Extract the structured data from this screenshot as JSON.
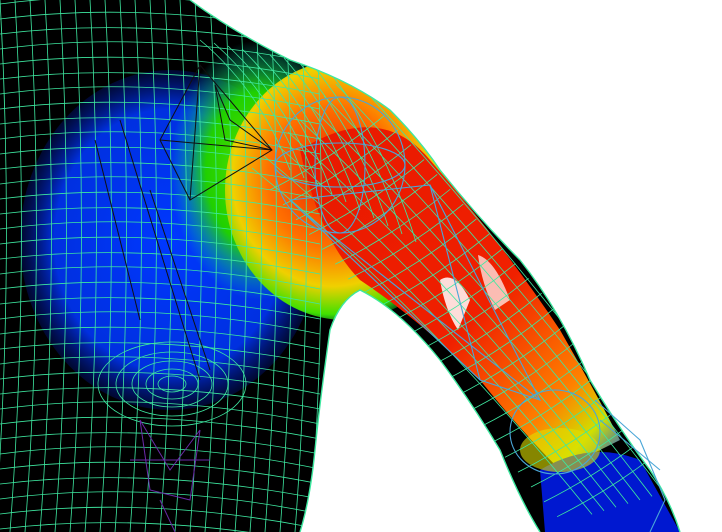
{
  "viewport": {
    "background_color": "#ffffff",
    "mesh_color": "#3ee8a0",
    "bone_color": "#4aa6d8",
    "skeleton_color": "#101010",
    "weight_ramp": [
      "#0018c8",
      "#0048ff",
      "#00c8ff",
      "#30e000",
      "#f0e000",
      "#ff8000",
      "#e81000",
      "#ffffff"
    ]
  }
}
